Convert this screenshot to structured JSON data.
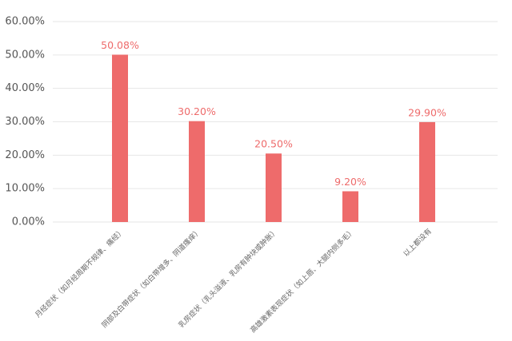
{
  "chart_data": {
    "type": "bar",
    "categories": [
      "月经症状（如月经周期不规律、痛经）",
      "阴部及白带症状（如白带增多、阴道瘙痒）",
      "乳房症状（乳头溢液、乳房有肿块或肿胀）",
      "高雄激素表现症状（如上唇、大腿内侧多毛）",
      "以上都没有"
    ],
    "values": [
      50.08,
      30.2,
      20.5,
      9.2,
      29.9
    ],
    "value_labels": [
      "50.08%",
      "30.20%",
      "20.50%",
      "9.20%",
      "29.90%"
    ],
    "color": "#ee6b6b",
    "ylim": [
      0,
      60
    ],
    "yticks": [
      {
        "value": 0,
        "label": "0.00%"
      },
      {
        "value": 10,
        "label": "10.00%"
      },
      {
        "value": 20,
        "label": "20.00%"
      },
      {
        "value": 30,
        "label": "30.00%"
      },
      {
        "value": 40,
        "label": "40.00%"
      },
      {
        "value": 50,
        "label": "50.00%"
      },
      {
        "value": 60,
        "label": "60.00%"
      }
    ],
    "grid": true
  }
}
